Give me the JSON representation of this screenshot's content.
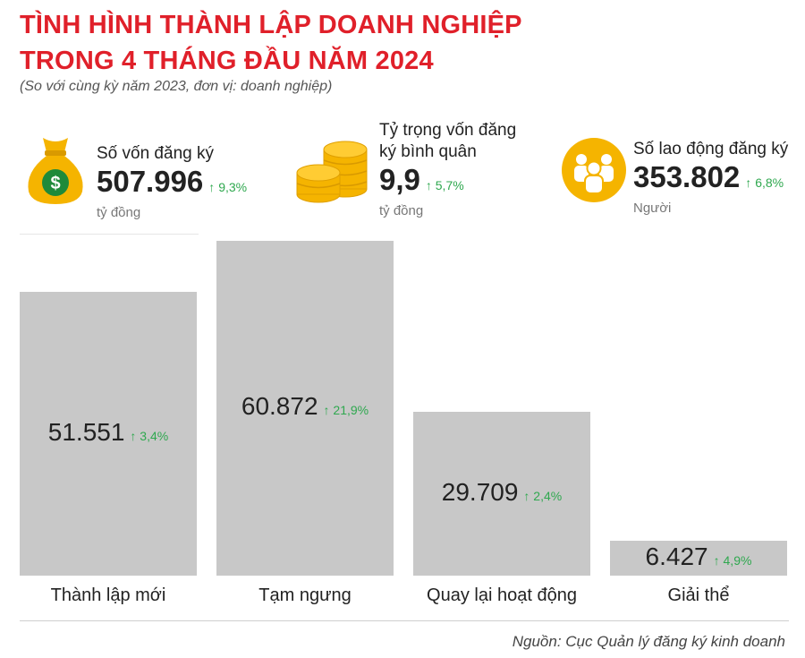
{
  "title": {
    "line1": "TÌNH HÌNH THÀNH LẬP DOANH NGHIỆP",
    "line2": "TRONG 4 THÁNG ĐẦU NĂM 2024"
  },
  "subtitle": "(So với cùng kỳ năm 2023, đơn vị: doanh nghiệp)",
  "stats": [
    {
      "label": "Số vốn đăng ký",
      "value": "507.996",
      "change": "9,3%",
      "unit": "tỷ đồng",
      "icon": "money-bag-icon"
    },
    {
      "label_line1": "Tỷ trọng vốn đăng",
      "label_line2": "ký bình quân",
      "value": "9,9",
      "change": "5,7%",
      "unit": "tỷ đồng",
      "icon": "coins-icon"
    },
    {
      "label": "Số lao động đăng ký",
      "value": "353.802",
      "change": "6,8%",
      "unit": "Người",
      "icon": "people-icon"
    }
  ],
  "colors": {
    "title": "#e0202a",
    "bar": "#c8c8c8",
    "up": "#2fa84f",
    "icon_gold": "#f5b400"
  },
  "arrow": "↑",
  "chart_data": {
    "type": "bar",
    "categories": [
      "Thành lập mới",
      "Tạm ngưng",
      "Quay lại hoạt động",
      "Giải thể"
    ],
    "values": [
      51551,
      60872,
      29709,
      6427
    ],
    "value_labels": [
      "51.551",
      "60.872",
      "29.709",
      "6.427"
    ],
    "changes": [
      "3,4%",
      "21,9%",
      "2,4%",
      "4,9%"
    ],
    "ylim": [
      0,
      62000
    ],
    "grid": false
  },
  "source": "Nguồn: Cục Quản lý đăng ký kinh doanh"
}
